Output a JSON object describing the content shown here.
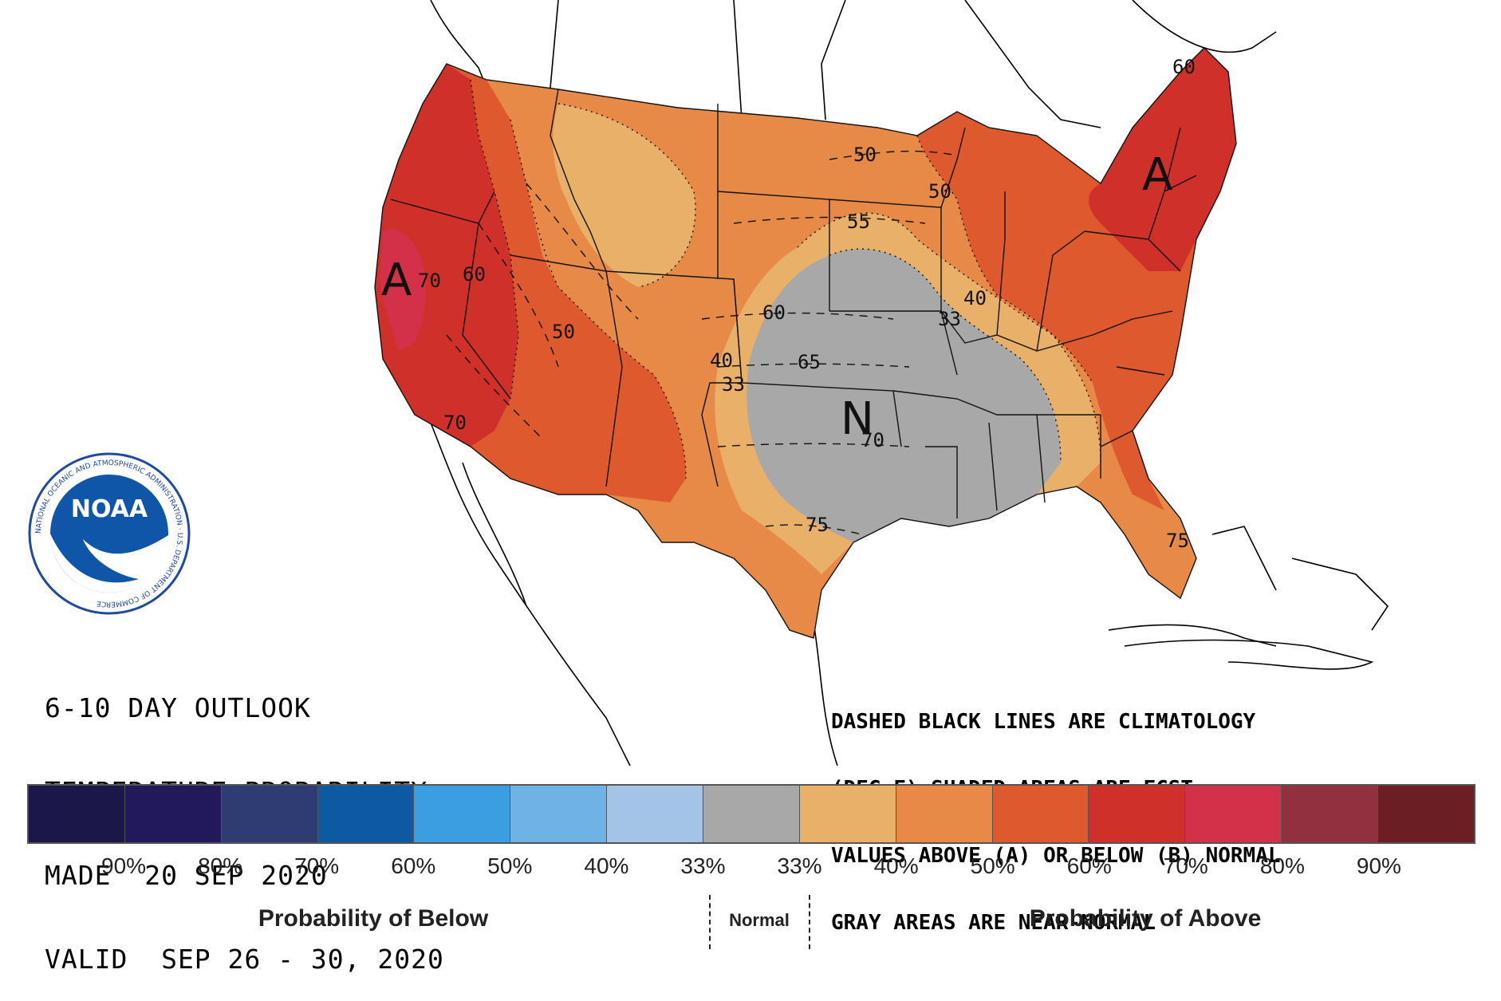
{
  "title": {
    "line1": "6-10 DAY OUTLOOK",
    "line2": "TEMPERATURE PROBABILITY",
    "line3": "MADE  20 SEP 2020",
    "line4": "VALID  SEP 26 - 30, 2020"
  },
  "notes": {
    "line1": "DASHED BLACK LINES ARE CLIMATOLOGY",
    "line2": "(DEG F) SHADED AREAS ARE FCST",
    "line3": "VALUES ABOVE (A) OR BELOW (B) NORMAL",
    "line4": "GRAY AREAS ARE NEAR-NORMAL"
  },
  "logo": {
    "text": "NOAA",
    "ring_text": "NATIONAL OCEANIC AND ATMOSPHERIC ADMINISTRATION · U.S. DEPARTMENT OF COMMERCE"
  },
  "map_labels": {
    "category_a_west": "A",
    "category_a_east": "A",
    "category_n": "N",
    "prob_70": "70",
    "prob_60": "60",
    "prob_50": "50",
    "prob_40": "40",
    "prob_40_east": "40",
    "prob_33_east": "33",
    "prob_33_west": "33",
    "prob_50_ne": "50",
    "prob_60_ne": "60",
    "clim_50": "50",
    "clim_55": "55",
    "clim_60": "60",
    "clim_65": "65",
    "clim_70": "70",
    "clim_70_sw": "70",
    "clim_75": "75",
    "clim_75_fl": "75"
  },
  "legend": {
    "swatches": [
      "#1b1748",
      "#21195c",
      "#2f3b73",
      "#0d5aa3",
      "#3a9ee0",
      "#6fb3e6",
      "#a3c4e6",
      "#a8a8a8",
      "#e9b06a",
      "#e78a47",
      "#de5a2e",
      "#d0302a",
      "#d3304a",
      "#923040",
      "#6b1f25"
    ],
    "percent_labels": [
      "90%",
      "80%",
      "70%",
      "60%",
      "50%",
      "40%",
      "33%",
      "33%",
      "40%",
      "50%",
      "60%",
      "70%",
      "80%",
      "90%"
    ],
    "below_label": "Probability of Below",
    "normal_label": "Normal",
    "above_label": "Probability of Above"
  },
  "colors": {
    "near_normal": "#a8a8a8",
    "above_33": "#e9b06a",
    "above_40": "#e78a47",
    "above_50": "#de5a2e",
    "above_60": "#d0302a",
    "above_70": "#d3304a"
  }
}
